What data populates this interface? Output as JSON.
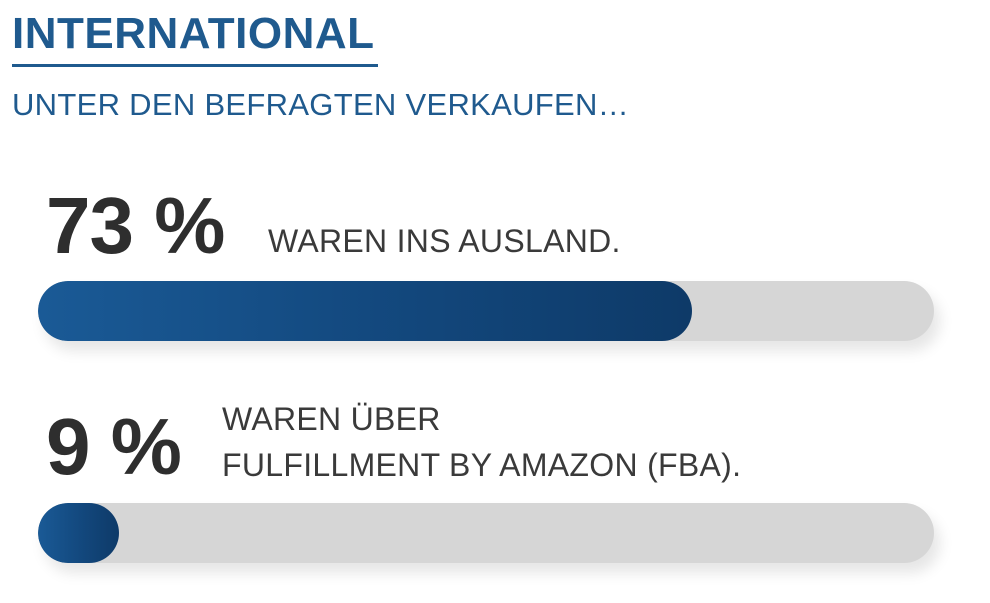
{
  "header": {
    "title": "INTERNATIONAL",
    "subtitle": "UNTER DEN BEFRAGTEN VERKAUFEN…"
  },
  "stats": [
    {
      "value_label": "73 %",
      "description_line1": "WAREN INS AUSLAND.",
      "description_line2": "",
      "percent": 73
    },
    {
      "value_label": "9 %",
      "description_line1": "WAREN ÜBER",
      "description_line2": "FULFILLMENT BY AMAZON (FBA).",
      "percent": 9
    }
  ],
  "colors": {
    "accent": "#1f5a8e",
    "bar_fill": "#13497f",
    "bar_track": "#d6d6d6",
    "value_text": "#2e2e2e"
  },
  "chart_data": {
    "type": "bar",
    "orientation": "horizontal",
    "title": "INTERNATIONAL",
    "subtitle": "UNTER DEN BEFRAGTEN VERKAUFEN…",
    "categories": [
      "WAREN INS AUSLAND.",
      "WAREN ÜBER FULFILLMENT BY AMAZON (FBA)."
    ],
    "values": [
      73,
      9
    ],
    "unit": "%",
    "xlim": [
      0,
      100
    ],
    "grid": false,
    "legend": "none"
  }
}
